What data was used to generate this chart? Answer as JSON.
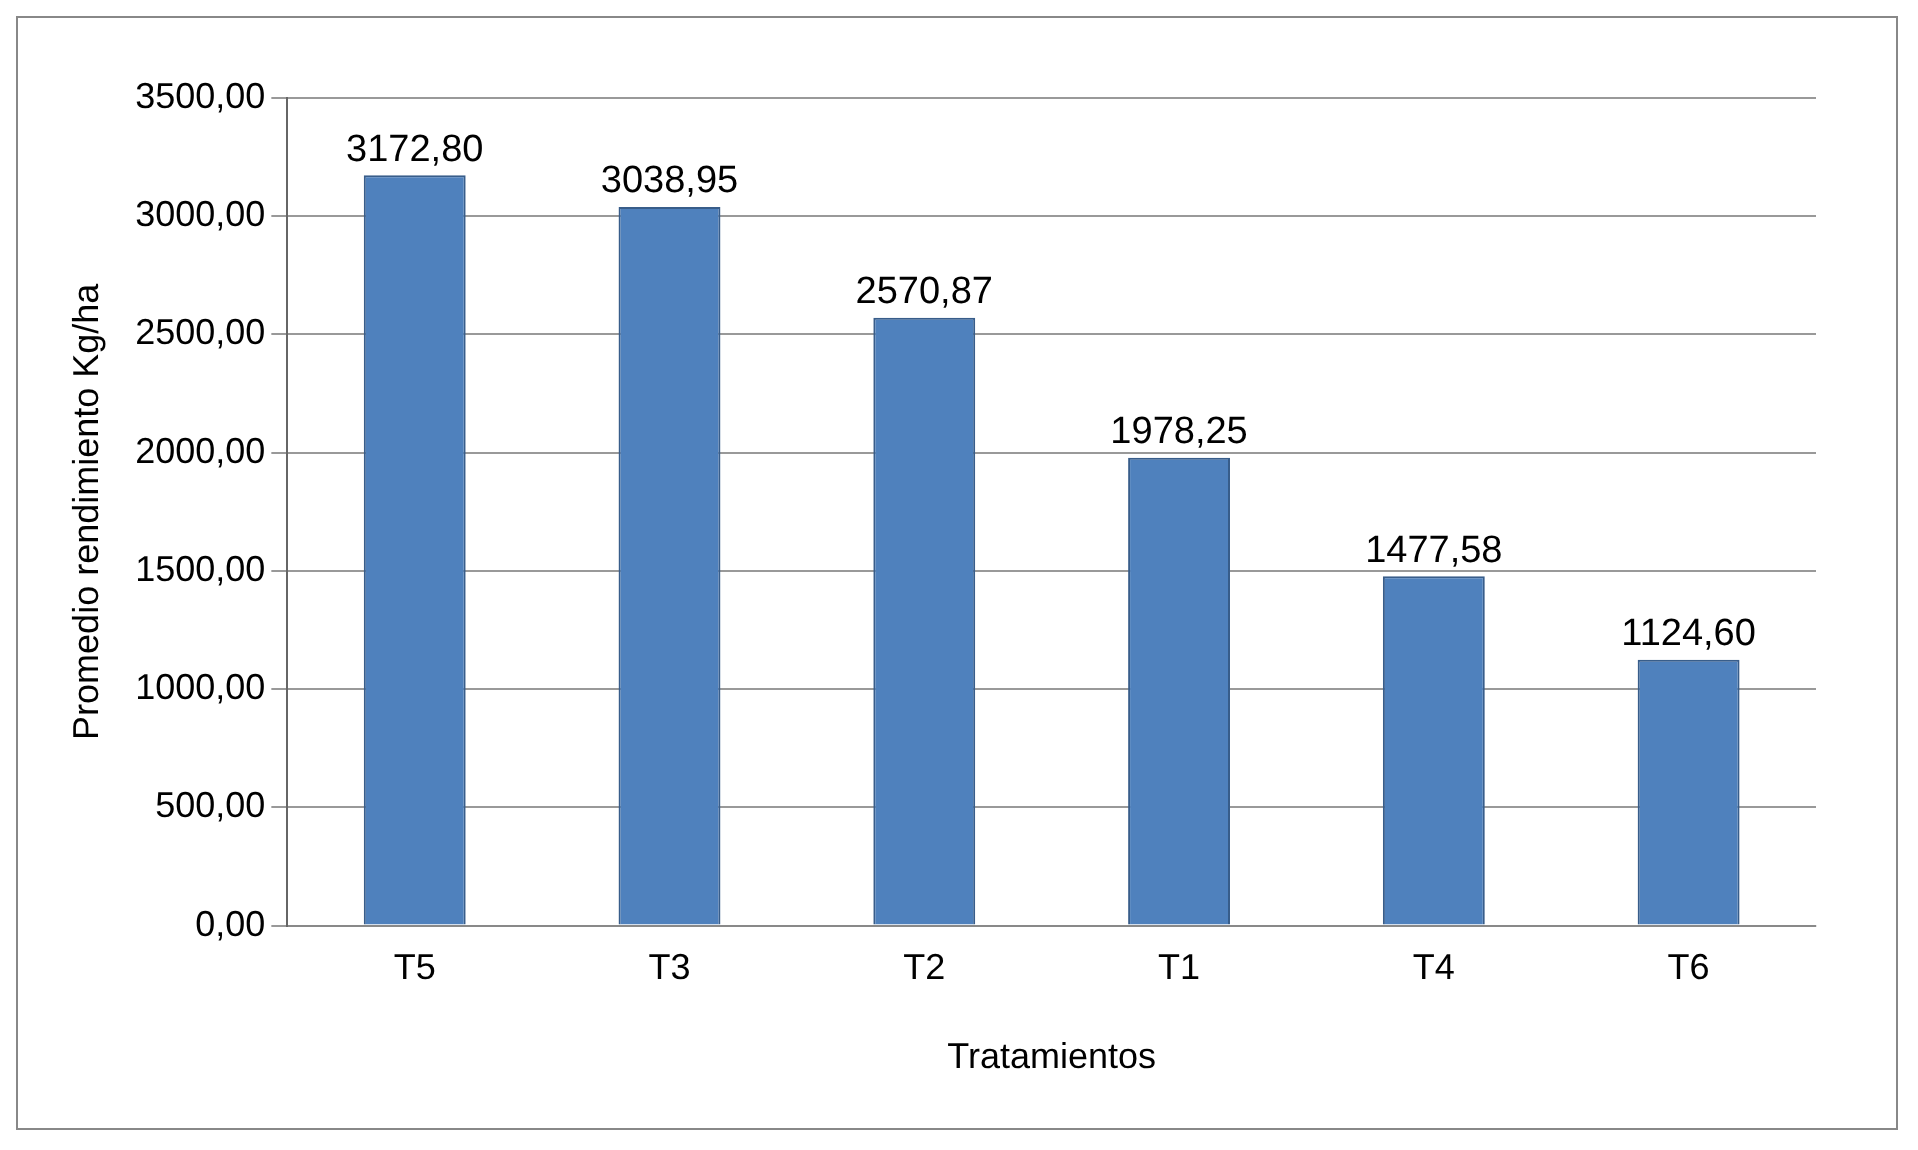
{
  "chart_data": {
    "type": "bar",
    "xlabel": "Tratamientos",
    "ylabel": "Promedio rendimiento Kg/ha",
    "categories": [
      "T5",
      "T3",
      "T2",
      "T1",
      "T4",
      "T6"
    ],
    "values": [
      3172.8,
      3038.95,
      2570.87,
      1978.25,
      1477.58,
      1124.6
    ],
    "value_labels": [
      "3172,80",
      "3038,95",
      "2570,87",
      "1978,25",
      "1477,58",
      "1124,60"
    ],
    "color": "#4f81bd",
    "ylim": [
      0,
      3500
    ],
    "yticks": [
      {
        "value": 0,
        "label": "0,00"
      },
      {
        "value": 500,
        "label": "500,00"
      },
      {
        "value": 1000,
        "label": "1000,00"
      },
      {
        "value": 1500,
        "label": "1500,00"
      },
      {
        "value": 2000,
        "label": "2000,00"
      },
      {
        "value": 2500,
        "label": "2500,00"
      },
      {
        "value": 3000,
        "label": "3000,00"
      },
      {
        "value": 3500,
        "label": "3500,00"
      }
    ],
    "grid": "y",
    "legend": false
  }
}
